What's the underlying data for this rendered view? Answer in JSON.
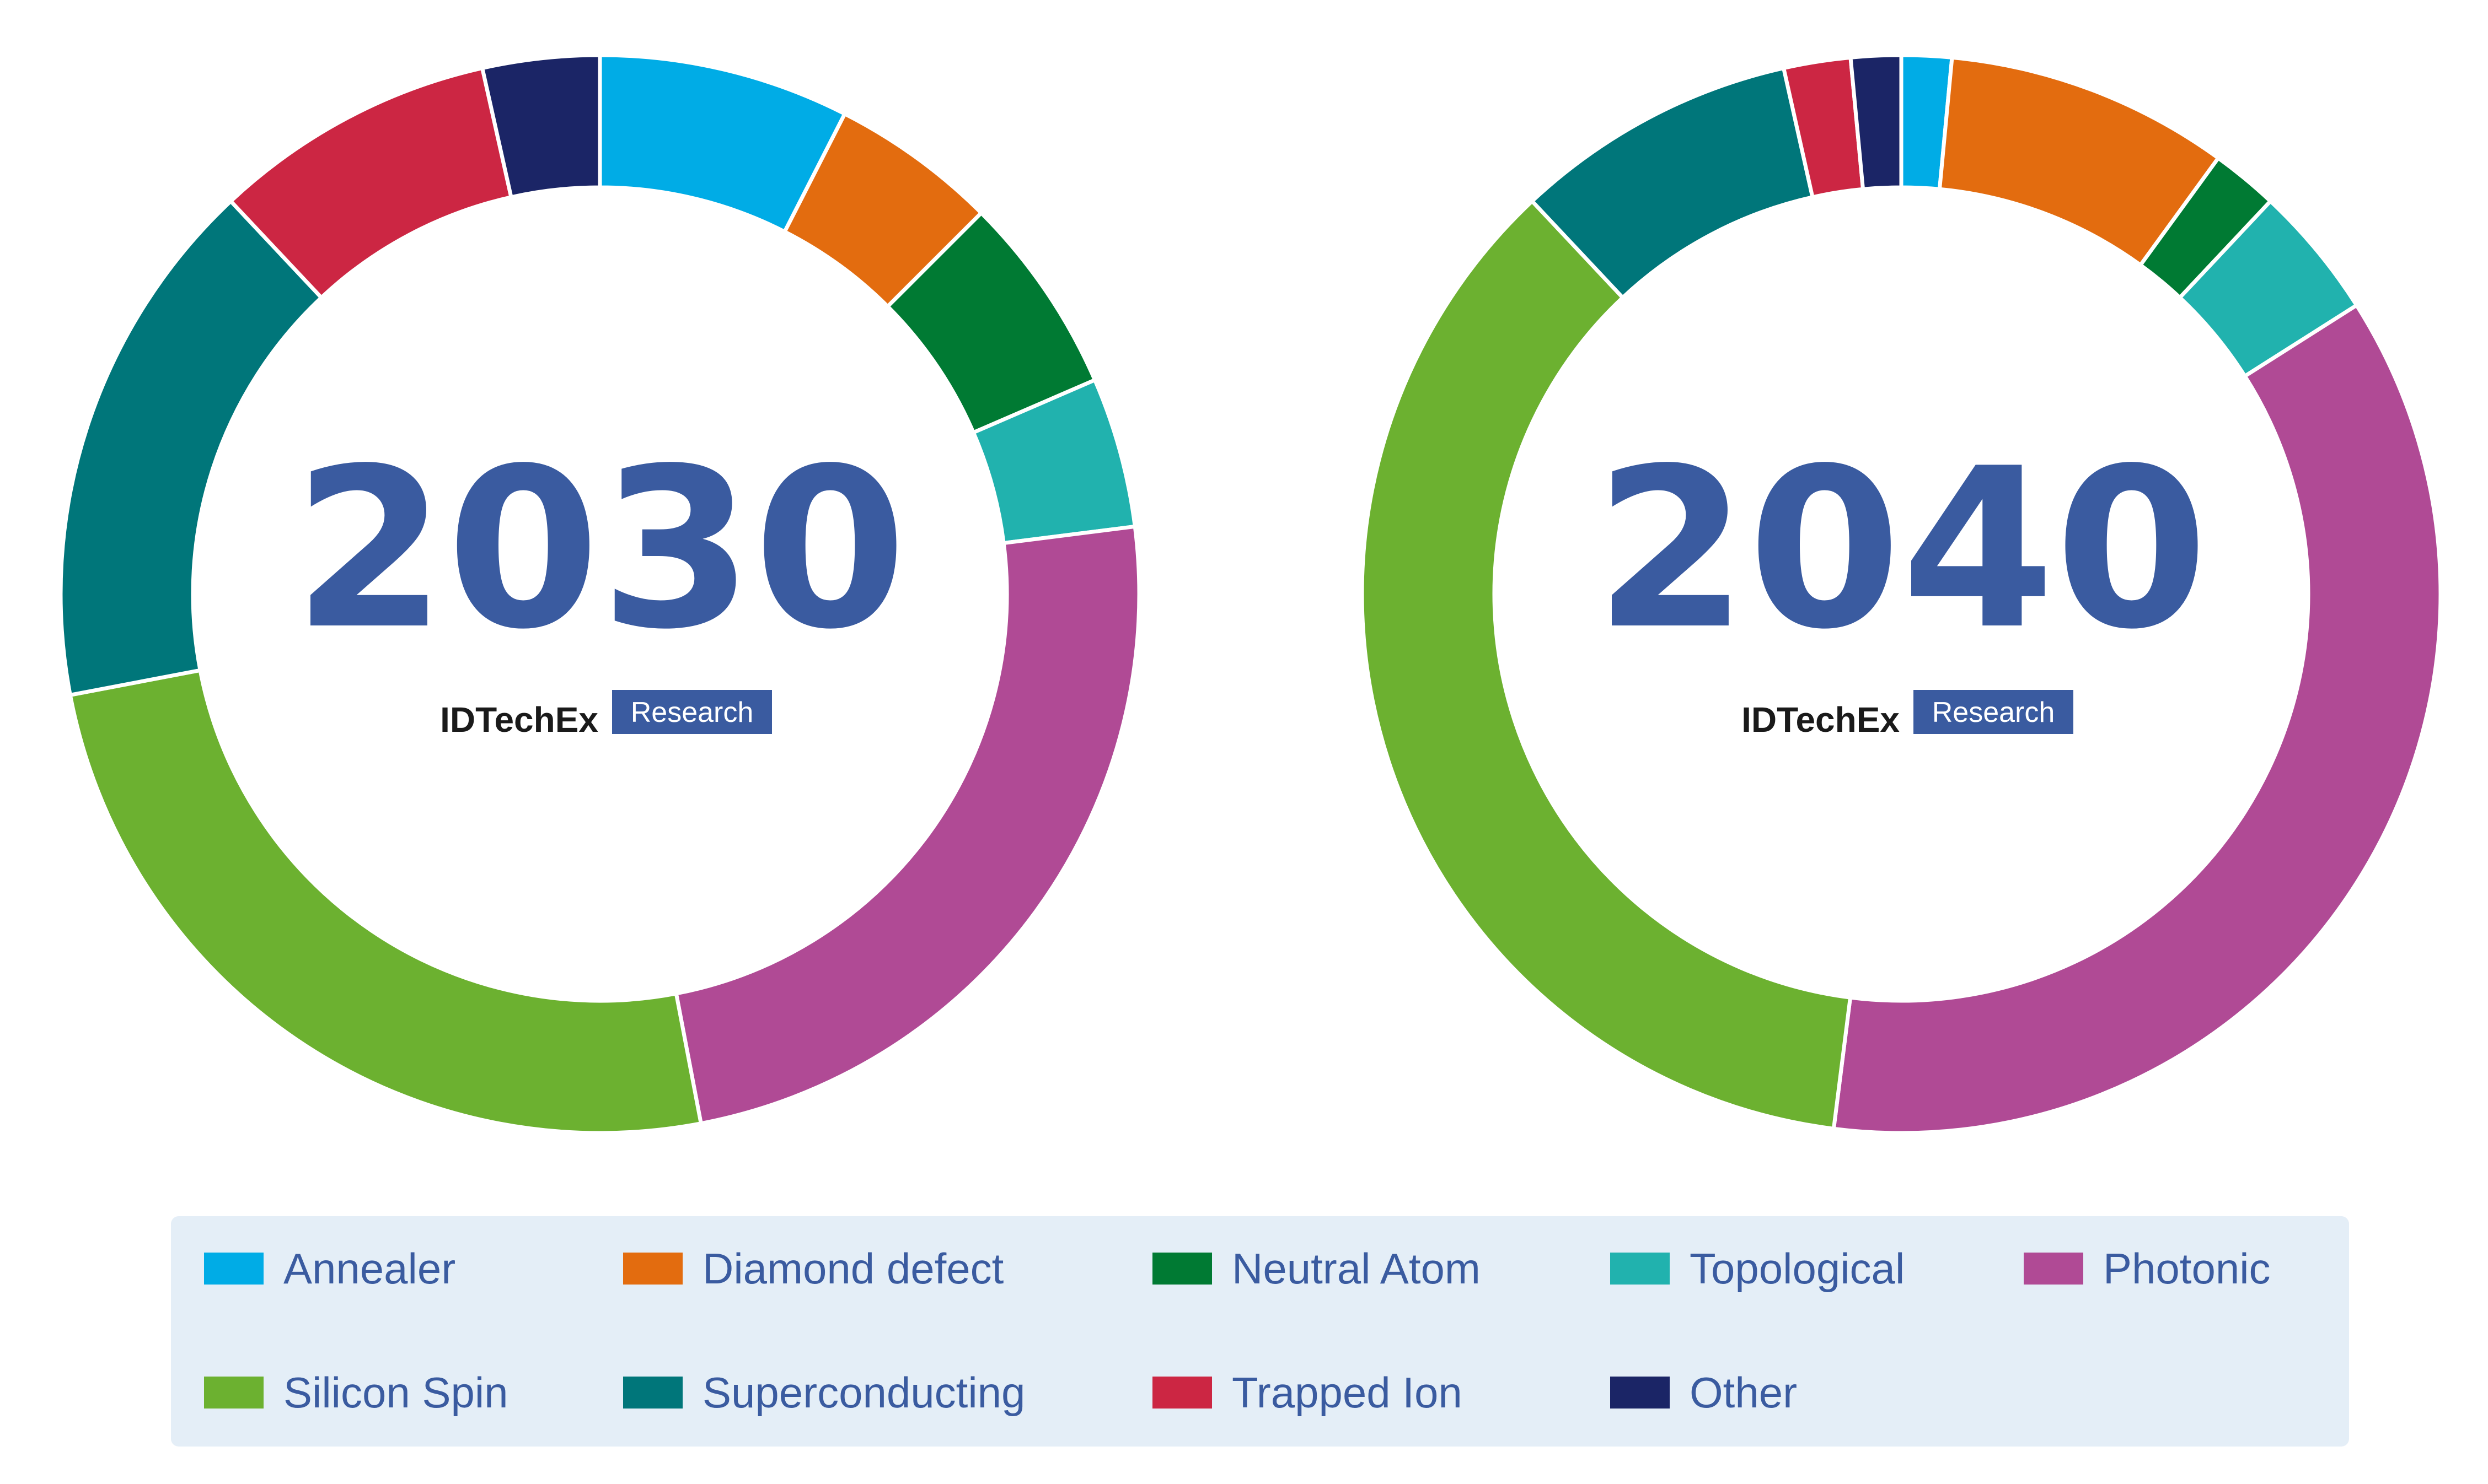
{
  "chart_data": [
    {
      "type": "donut",
      "title": "2030",
      "brand": "IDTechEx",
      "brand_tag": "Research",
      "categories": [
        "Annealer",
        "Diamond defect",
        "Neutral Atom",
        "Topological",
        "Photonic",
        "Silicon Spin",
        "Superconducting",
        "Trapped Ion",
        "Other"
      ],
      "values": [
        7.5,
        5.0,
        6.0,
        4.5,
        24.0,
        25.0,
        16.0,
        8.5,
        3.5
      ]
    },
    {
      "type": "donut",
      "title": "2040",
      "brand": "IDTechEx",
      "brand_tag": "Research",
      "categories": [
        "Annealer",
        "Diamond defect",
        "Neutral Atom",
        "Topological",
        "Photonic",
        "Silicon Spin",
        "Superconducting",
        "Trapped Ion",
        "Other"
      ],
      "values": [
        1.5,
        8.5,
        2.0,
        4.0,
        36.0,
        36.0,
        8.5,
        2.0,
        1.5
      ]
    }
  ],
  "legend": {
    "items": [
      {
        "label": "Annealer",
        "color": "#00ace6"
      },
      {
        "label": "Diamond defect",
        "color": "#e36c0f"
      },
      {
        "label": "Neutral Atom",
        "color": "#007a33"
      },
      {
        "label": "Topological",
        "color": "#21b2ae"
      },
      {
        "label": "Photonic",
        "color": "#b04a95"
      },
      {
        "label": "Silicon Spin",
        "color": "#6cb130"
      },
      {
        "label": "Superconducting",
        "color": "#00767a"
      },
      {
        "label": "Trapped Ion",
        "color": "#cc2643"
      },
      {
        "label": "Other",
        "color": "#1b2566"
      }
    ]
  }
}
